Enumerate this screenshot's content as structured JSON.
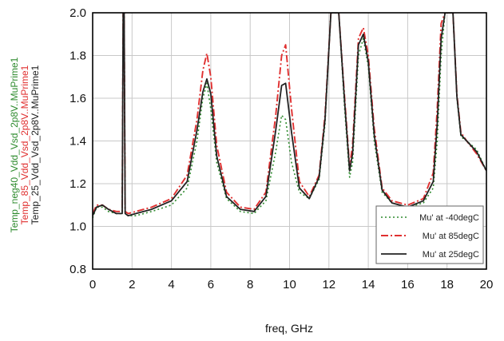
{
  "chart_data": {
    "type": "line",
    "xlabel": "freq, GHz",
    "ylabels": [
      {
        "text": "Temp_neg40_Vdd_Vsd_2p8V..MuPrime1",
        "color": "#2e8b2e"
      },
      {
        "text": "Temp_85_Vdd_Vsd_2p8V..MuPrime1",
        "color": "#e03030"
      },
      {
        "text": "Temp_25_Vdd_Vsd_2p8V..MuPrime1",
        "color": "#222222"
      }
    ],
    "xlim": [
      0,
      20
    ],
    "ylim": [
      0.8,
      2.0
    ],
    "xticks": [
      "0",
      "2",
      "4",
      "6",
      "8",
      "10",
      "12",
      "14",
      "16",
      "18",
      "20"
    ],
    "yticks": [
      "0.8",
      "1.0",
      "1.2",
      "1.4",
      "1.6",
      "1.8",
      "2.0"
    ],
    "grid": true,
    "legend_position": "bottom-right",
    "series": [
      {
        "name": "Mu' at -40degC",
        "color": "#2e8b2e",
        "dash": "2,3",
        "width": 1.6,
        "x": [
          0,
          0.2,
          0.5,
          0.8,
          1.2,
          1.5,
          1.55,
          1.6,
          1.65,
          1.8,
          2.2,
          3,
          4,
          4.8,
          5.3,
          5.6,
          5.8,
          6.0,
          6.3,
          6.8,
          7.5,
          8.2,
          8.8,
          9.3,
          9.6,
          9.8,
          10.1,
          10.5,
          11,
          11.5,
          11.8,
          12.1,
          12.5,
          12.8,
          13.05,
          13.2,
          13.5,
          13.75,
          14.0,
          14.3,
          14.7,
          15.2,
          16,
          16.8,
          17.3,
          17.5,
          17.7,
          17.9,
          18.1,
          18.3,
          18.5,
          18.7,
          19,
          19.5,
          20
        ],
        "y": [
          1.04,
          1.09,
          1.09,
          1.07,
          1.06,
          1.06,
          2.0,
          2.0,
          1.06,
          1.05,
          1.05,
          1.07,
          1.1,
          1.18,
          1.4,
          1.6,
          1.67,
          1.55,
          1.3,
          1.13,
          1.07,
          1.06,
          1.12,
          1.35,
          1.52,
          1.5,
          1.3,
          1.16,
          1.13,
          1.22,
          1.48,
          2.0,
          2.0,
          1.55,
          1.23,
          1.3,
          1.8,
          1.88,
          1.75,
          1.4,
          1.16,
          1.11,
          1.09,
          1.11,
          1.18,
          1.4,
          1.8,
          2.0,
          2.0,
          2.0,
          1.6,
          1.42,
          1.4,
          1.36,
          1.26
        ]
      },
      {
        "name": "Mu' at 85degC",
        "color": "#e03030",
        "dash": "9,3,2,3",
        "width": 1.9,
        "x": [
          0,
          0.2,
          0.5,
          0.8,
          1.2,
          1.5,
          1.55,
          1.6,
          1.65,
          1.8,
          2.2,
          3,
          4,
          4.8,
          5.3,
          5.6,
          5.8,
          6.0,
          6.3,
          6.8,
          7.5,
          8.2,
          8.8,
          9.3,
          9.6,
          9.8,
          10.1,
          10.5,
          11,
          11.5,
          11.8,
          12.1,
          12.5,
          12.8,
          13.05,
          13.2,
          13.5,
          13.75,
          14.0,
          14.3,
          14.7,
          15.2,
          16,
          16.8,
          17.3,
          17.5,
          17.7,
          17.9,
          18.1,
          18.3,
          18.5,
          18.7,
          19,
          19.5,
          20
        ],
        "y": [
          1.06,
          1.1,
          1.1,
          1.08,
          1.07,
          1.07,
          2.0,
          2.0,
          1.07,
          1.06,
          1.07,
          1.09,
          1.13,
          1.24,
          1.5,
          1.73,
          1.81,
          1.7,
          1.38,
          1.16,
          1.09,
          1.08,
          1.16,
          1.52,
          1.8,
          1.85,
          1.55,
          1.21,
          1.14,
          1.24,
          1.52,
          2.0,
          2.0,
          1.6,
          1.28,
          1.38,
          1.88,
          1.93,
          1.8,
          1.46,
          1.18,
          1.12,
          1.1,
          1.13,
          1.25,
          1.55,
          1.95,
          2.0,
          2.0,
          2.0,
          1.62,
          1.44,
          1.4,
          1.34,
          1.26
        ]
      },
      {
        "name": "Mu' at 25degC",
        "color": "#222222",
        "dash": "",
        "width": 1.8,
        "x": [
          0,
          0.2,
          0.5,
          0.8,
          1.2,
          1.5,
          1.55,
          1.6,
          1.65,
          1.8,
          2.2,
          3,
          4,
          4.8,
          5.3,
          5.6,
          5.8,
          6.0,
          6.3,
          6.8,
          7.5,
          8.2,
          8.8,
          9.3,
          9.6,
          9.8,
          10.1,
          10.5,
          11,
          11.5,
          11.8,
          12.1,
          12.5,
          12.8,
          13.05,
          13.2,
          13.5,
          13.75,
          14.0,
          14.3,
          14.7,
          15.2,
          16,
          16.8,
          17.3,
          17.5,
          17.7,
          17.9,
          18.1,
          18.3,
          18.5,
          18.7,
          19,
          19.5,
          20
        ],
        "y": [
          1.05,
          1.09,
          1.1,
          1.08,
          1.06,
          1.06,
          2.0,
          2.0,
          1.06,
          1.05,
          1.06,
          1.08,
          1.12,
          1.21,
          1.45,
          1.63,
          1.69,
          1.62,
          1.33,
          1.14,
          1.08,
          1.07,
          1.14,
          1.45,
          1.66,
          1.67,
          1.44,
          1.18,
          1.13,
          1.23,
          1.5,
          2.0,
          2.0,
          1.58,
          1.26,
          1.34,
          1.85,
          1.9,
          1.77,
          1.43,
          1.17,
          1.11,
          1.09,
          1.12,
          1.21,
          1.48,
          1.88,
          2.0,
          2.0,
          2.0,
          1.61,
          1.43,
          1.4,
          1.35,
          1.26
        ]
      }
    ]
  }
}
